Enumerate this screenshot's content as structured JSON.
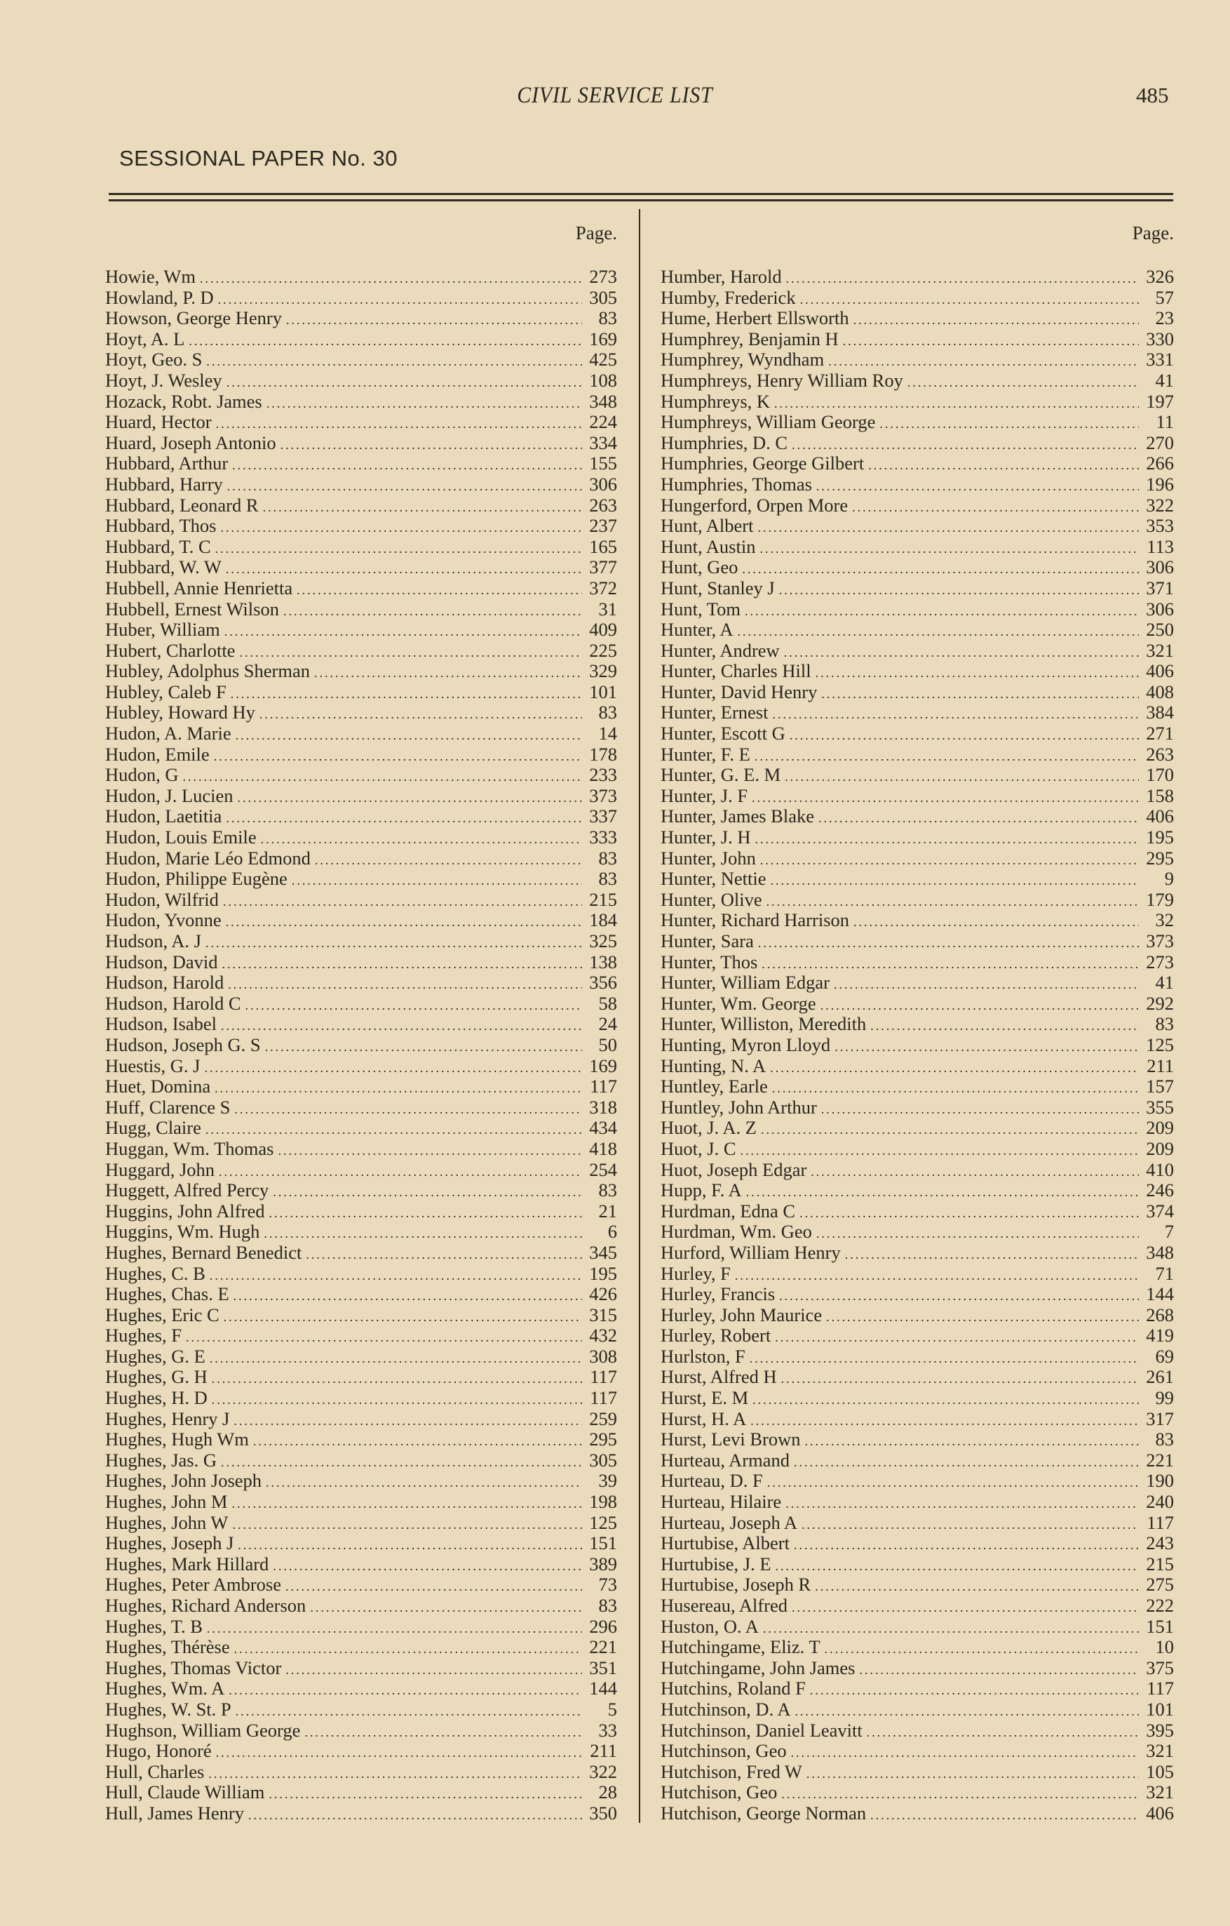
{
  "header": {
    "title": "CIVIL SERVICE LIST",
    "page_number": "485",
    "sessional": "SESSIONAL PAPER No. 30"
  },
  "columns": [
    {
      "page_label": "Page.",
      "entries": [
        [
          "Howie, Wm",
          "273"
        ],
        [
          "Howland, P. D",
          "305"
        ],
        [
          "Howson, George Henry",
          "83"
        ],
        [
          "Hoyt, A. L",
          "169"
        ],
        [
          "Hoyt, Geo. S",
          "425"
        ],
        [
          "Hoyt, J. Wesley",
          "108"
        ],
        [
          "Hozack, Robt. James",
          "348"
        ],
        [
          "Huard, Hector",
          "224"
        ],
        [
          "Huard, Joseph Antonio",
          "334"
        ],
        [
          "Hubbard, Arthur",
          "155"
        ],
        [
          "Hubbard, Harry",
          "306"
        ],
        [
          "Hubbard, Leonard R",
          "263"
        ],
        [
          "Hubbard, Thos",
          "237"
        ],
        [
          "Hubbard, T. C",
          "165"
        ],
        [
          "Hubbard, W. W",
          "377"
        ],
        [
          "Hubbell, Annie Henrietta",
          "372"
        ],
        [
          "Hubbell, Ernest Wilson",
          "31"
        ],
        [
          "Huber, William",
          "409"
        ],
        [
          "Hubert, Charlotte",
          "225"
        ],
        [
          "Hubley, Adolphus Sherman",
          "329"
        ],
        [
          "Hubley, Caleb F",
          "101"
        ],
        [
          "Hubley, Howard Hy",
          "83"
        ],
        [
          "Hudon, A. Marie",
          "14"
        ],
        [
          "Hudon, Emile",
          "178"
        ],
        [
          "Hudon, G",
          "233"
        ],
        [
          "Hudon, J. Lucien",
          "373"
        ],
        [
          "Hudon, Laetitia",
          "337"
        ],
        [
          "Hudon, Louis Emile",
          "333"
        ],
        [
          "Hudon, Marie Léo Edmond",
          "83"
        ],
        [
          "Hudon, Philippe Eugène",
          "83"
        ],
        [
          "Hudon, Wilfrid",
          "215"
        ],
        [
          "Hudon, Yvonne",
          "184"
        ],
        [
          "Hudson, A. J",
          "325"
        ],
        [
          "Hudson, David",
          "138"
        ],
        [
          "Hudson, Harold",
          "356"
        ],
        [
          "Hudson, Harold C",
          "58"
        ],
        [
          "Hudson, Isabel",
          "24"
        ],
        [
          "Hudson, Joseph G. S",
          "50"
        ],
        [
          "Huestis, G. J",
          "169"
        ],
        [
          "Huet, Domina",
          "117"
        ],
        [
          "Huff, Clarence S",
          "318"
        ],
        [
          "Hugg, Claire",
          "434"
        ],
        [
          "Huggan, Wm. Thomas",
          "418"
        ],
        [
          "Huggard, John",
          "254"
        ],
        [
          "Huggett, Alfred Percy",
          "83"
        ],
        [
          "Huggins, John Alfred",
          "21"
        ],
        [
          "Huggins, Wm. Hugh",
          "6"
        ],
        [
          "Hughes, Bernard Benedict",
          "345"
        ],
        [
          "Hughes, C. B",
          "195"
        ],
        [
          "Hughes, Chas. E",
          "426"
        ],
        [
          "Hughes, Eric C",
          "315"
        ],
        [
          "Hughes, F",
          "432"
        ],
        [
          "Hughes, G. E",
          "308"
        ],
        [
          "Hughes, G. H",
          "117"
        ],
        [
          "Hughes, H. D",
          "117"
        ],
        [
          "Hughes, Henry J",
          "259"
        ],
        [
          "Hughes, Hugh Wm",
          "295"
        ],
        [
          "Hughes, Jas. G",
          "305"
        ],
        [
          "Hughes, John Joseph",
          "39"
        ],
        [
          "Hughes, John M",
          "198"
        ],
        [
          "Hughes, John W",
          "125"
        ],
        [
          "Hughes, Joseph J",
          "151"
        ],
        [
          "Hughes, Mark Hillard",
          "389"
        ],
        [
          "Hughes, Peter Ambrose",
          "73"
        ],
        [
          "Hughes, Richard Anderson",
          "83"
        ],
        [
          "Hughes, T. B",
          "296"
        ],
        [
          "Hughes, Thérèse",
          "221"
        ],
        [
          "Hughes, Thomas Victor",
          "351"
        ],
        [
          "Hughes, Wm. A",
          "144"
        ],
        [
          "Hughes, W. St. P",
          "5"
        ],
        [
          "Hughson, William George",
          "33"
        ],
        [
          "Hugo, Honoré",
          "211"
        ],
        [
          "Hull, Charles",
          "322"
        ],
        [
          "Hull, Claude William",
          "28"
        ],
        [
          "Hull, James Henry",
          "350"
        ]
      ]
    },
    {
      "page_label": "Page.",
      "entries": [
        [
          "Humber, Harold",
          "326"
        ],
        [
          "Humby, Frederick",
          "57"
        ],
        [
          "Hume, Herbert Ellsworth",
          "23"
        ],
        [
          "Humphrey, Benjamin H",
          "330"
        ],
        [
          "Humphrey, Wyndham",
          "331"
        ],
        [
          "Humphreys, Henry William Roy",
          "41"
        ],
        [
          "Humphreys, K",
          "197"
        ],
        [
          "Humphreys, William George",
          "11"
        ],
        [
          "Humphries, D. C",
          "270"
        ],
        [
          "Humphries, George Gilbert",
          "266"
        ],
        [
          "Humphries, Thomas",
          "196"
        ],
        [
          "Hungerford, Orpen More",
          "322"
        ],
        [
          "Hunt, Albert",
          "353"
        ],
        [
          "Hunt, Austin",
          "113"
        ],
        [
          "Hunt, Geo",
          "306"
        ],
        [
          "Hunt, Stanley J",
          "371"
        ],
        [
          "Hunt, Tom",
          "306"
        ],
        [
          "Hunter, A",
          "250"
        ],
        [
          "Hunter, Andrew",
          "321"
        ],
        [
          "Hunter, Charles Hill",
          "406"
        ],
        [
          "Hunter, David Henry",
          "408"
        ],
        [
          "Hunter, Ernest",
          "384"
        ],
        [
          "Hunter, Escott G",
          "271"
        ],
        [
          "Hunter, F. E",
          "263"
        ],
        [
          "Hunter, G. E. M",
          "170"
        ],
        [
          "Hunter, J. F",
          "158"
        ],
        [
          "Hunter, James Blake",
          "406"
        ],
        [
          "Hunter, J. H",
          "195"
        ],
        [
          "Hunter, John",
          "295"
        ],
        [
          "Hunter, Nettie",
          "9"
        ],
        [
          "Hunter, Olive",
          "179"
        ],
        [
          "Hunter, Richard Harrison",
          "32"
        ],
        [
          "Hunter, Sara",
          "373"
        ],
        [
          "Hunter, Thos",
          "273"
        ],
        [
          "Hunter, William Edgar",
          "41"
        ],
        [
          "Hunter, Wm. George",
          "292"
        ],
        [
          "Hunter, Williston, Meredith",
          "83"
        ],
        [
          "Hunting, Myron Lloyd",
          "125"
        ],
        [
          "Hunting, N. A",
          "211"
        ],
        [
          "Huntley, Earle",
          "157"
        ],
        [
          "Huntley, John Arthur",
          "355"
        ],
        [
          "Huot, J. A. Z",
          "209"
        ],
        [
          "Huot, J. C",
          "209"
        ],
        [
          "Huot, Joseph Edgar",
          "410"
        ],
        [
          "Hupp, F. A",
          "246"
        ],
        [
          "Hurdman, Edna C",
          "374"
        ],
        [
          "Hurdman, Wm. Geo",
          "7"
        ],
        [
          "Hurford, William Henry",
          "348"
        ],
        [
          "Hurley, F",
          "71"
        ],
        [
          "Hurley, Francis",
          "144"
        ],
        [
          "Hurley, John Maurice",
          "268"
        ],
        [
          "Hurley, Robert",
          "419"
        ],
        [
          "Hurlston, F",
          "69"
        ],
        [
          "Hurst, Alfred H",
          "261"
        ],
        [
          "Hurst, E. M",
          "99"
        ],
        [
          "Hurst, H. A",
          "317"
        ],
        [
          "Hurst, Levi Brown",
          "83"
        ],
        [
          "Hurteau, Armand",
          "221"
        ],
        [
          "Hurteau, D. F",
          "190"
        ],
        [
          "Hurteau, Hilaire",
          "240"
        ],
        [
          "Hurteau, Joseph A",
          "117"
        ],
        [
          "Hurtubise, Albert",
          "243"
        ],
        [
          "Hurtubise, J. E",
          "215"
        ],
        [
          "Hurtubise, Joseph R",
          "275"
        ],
        [
          "Husereau, Alfred",
          "222"
        ],
        [
          "Huston, O. A",
          "151"
        ],
        [
          "Hutchingame, Eliz. T",
          "10"
        ],
        [
          "Hutchingame, John James",
          "375"
        ],
        [
          "Hutchins, Roland F",
          "117"
        ],
        [
          "Hutchinson, D. A",
          "101"
        ],
        [
          "Hutchinson, Daniel Leavitt",
          "395"
        ],
        [
          "Hutchinson, Geo",
          "321"
        ],
        [
          "Hutchison, Fred W",
          "105"
        ],
        [
          "Hutchison, Geo",
          "321"
        ],
        [
          "Hutchison, George Norman",
          "406"
        ]
      ]
    }
  ]
}
